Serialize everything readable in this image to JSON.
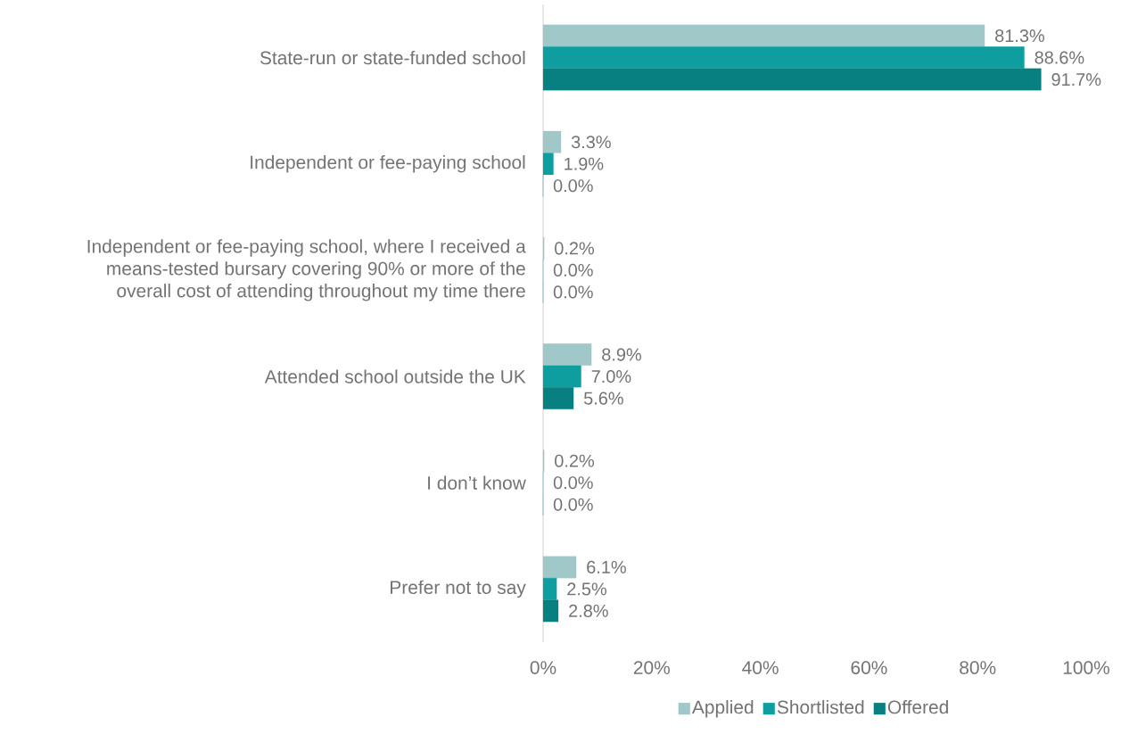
{
  "chart_data": {
    "type": "bar",
    "orientation": "horizontal",
    "categories": [
      "State-run or state-funded school",
      "Independent or fee-paying school",
      "Independent or fee-paying school, where I received a means-tested bursary covering 90% or more of the overall cost of attending throughout my time there",
      "Attended school outside the UK",
      "I don’t know",
      "Prefer not to say"
    ],
    "series": [
      {
        "name": "Applied",
        "color": "#a0c8c8",
        "values": [
          81.3,
          3.3,
          0.2,
          8.9,
          0.2,
          6.1
        ],
        "value_labels": [
          "81.3%",
          "3.3%",
          "0.2%",
          "8.9%",
          "0.2%",
          "6.1%"
        ]
      },
      {
        "name": "Shortlisted",
        "color": "#0e9ea0",
        "values": [
          88.6,
          1.9,
          0.0,
          7.0,
          0.0,
          2.5
        ],
        "value_labels": [
          "88.6%",
          "1.9%",
          "0.0%",
          "7.0%",
          "0.0%",
          "2.5%"
        ]
      },
      {
        "name": "Offered",
        "color": "#087f80",
        "values": [
          91.7,
          0.0,
          0.0,
          5.6,
          0.0,
          2.8
        ],
        "value_labels": [
          "91.7%",
          "0.0%",
          "0.0%",
          "5.6%",
          "0.0%",
          "2.8%"
        ]
      }
    ],
    "xlim": [
      0,
      100
    ],
    "xticks": [
      {
        "value": 0,
        "label": "0%"
      },
      {
        "value": 20,
        "label": "20%"
      },
      {
        "value": 40,
        "label": "40%"
      },
      {
        "value": 60,
        "label": "60%"
      },
      {
        "value": 80,
        "label": "80%"
      },
      {
        "value": 100,
        "label": "100%"
      }
    ],
    "legend": "bottom"
  }
}
